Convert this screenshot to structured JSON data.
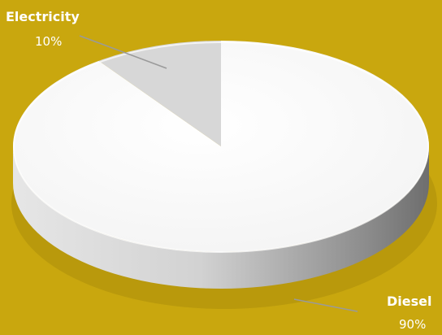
{
  "chart_data": {
    "type": "pie",
    "title": "",
    "style": "3d",
    "slices": [
      {
        "label": "Electricity",
        "value": 10,
        "display": "10%",
        "color": "#d7d7d7"
      },
      {
        "label": "Diesel",
        "value": 90,
        "display": "90%",
        "color": "#fafafa"
      }
    ],
    "legend": "none",
    "background": "#c9a70e"
  }
}
